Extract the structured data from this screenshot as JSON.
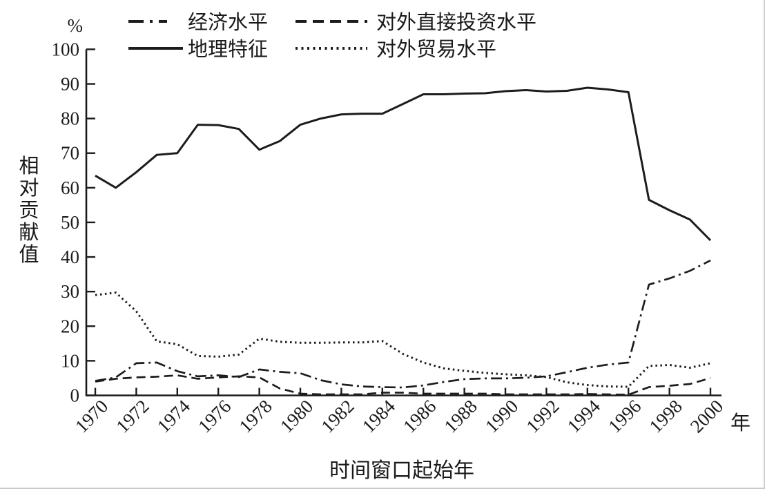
{
  "figure": {
    "percent_label": "%",
    "y_axis_title": "相对贡献值",
    "x_axis_title": "时间窗口起始年",
    "x_axis_unit_label": "年"
  },
  "colors": {
    "line": "#1c1c1c",
    "text": "#1a1a1a",
    "background": "#ffffff"
  },
  "legend": [
    {
      "label": "经济水平",
      "style": "dashdot"
    },
    {
      "label": "对外直接投资水平",
      "style": "dashed"
    },
    {
      "label": "地理特征",
      "style": "solid"
    },
    {
      "label": "对外贸易水平",
      "style": "dotted"
    }
  ],
  "chart_data": {
    "type": "line",
    "title": "",
    "xlabel": "时间窗口起始年",
    "ylabel": "相对贡献值",
    "y_unit": "%",
    "x_unit": "年",
    "ylim": [
      0,
      100
    ],
    "ytick_step": 10,
    "xtick_step": 2,
    "grid": false,
    "legend_position": "top",
    "x": [
      1970,
      1971,
      1972,
      1973,
      1974,
      1975,
      1976,
      1977,
      1978,
      1979,
      1980,
      1981,
      1982,
      1983,
      1984,
      1985,
      1986,
      1987,
      1988,
      1989,
      1990,
      1991,
      1992,
      1993,
      1994,
      1995,
      1996,
      1997,
      1998,
      1999,
      2000
    ],
    "series": [
      {
        "id": "geographic-features",
        "name": "地理特征",
        "style": "solid",
        "values": [
          63.5,
          60,
          64.5,
          69.5,
          70,
          78.2,
          78.1,
          77,
          71,
          73.5,
          78.2,
          80,
          81.2,
          81.4,
          81.4,
          84.2,
          87,
          87,
          87.2,
          87.3,
          87.9,
          88.2,
          87.8,
          88,
          88.9,
          88.4,
          87.6,
          56.5,
          53.5,
          50.8,
          44.8
        ]
      },
      {
        "id": "foreign-trade-level",
        "name": "对外贸易水平",
        "style": "dotted",
        "values": [
          29,
          29.7,
          24.3,
          15.6,
          14.8,
          11.4,
          11.2,
          11.8,
          16.4,
          15.5,
          15.2,
          15.2,
          15.3,
          15.3,
          15.7,
          12,
          9.5,
          7.8,
          7.1,
          6.5,
          6.1,
          5.8,
          5.3,
          3.8,
          3,
          2.6,
          2.5,
          8.5,
          8.8,
          8,
          9.3
        ]
      },
      {
        "id": "economic-level",
        "name": "经济水平",
        "style": "dashdot",
        "values": [
          4.2,
          5.2,
          9.3,
          9.5,
          7,
          5.5,
          5.8,
          5.3,
          7.5,
          6.8,
          6.4,
          4.4,
          3.2,
          2.6,
          2.4,
          2.3,
          2.9,
          3.9,
          4.7,
          4.9,
          4.9,
          5.1,
          5.5,
          6.7,
          8,
          8.9,
          9.5,
          32,
          33.8,
          36,
          39
        ]
      },
      {
        "id": "fdi-level",
        "name": "对外直接投资水平",
        "style": "dashed",
        "values": [
          4,
          4.8,
          5.2,
          5.4,
          5.8,
          4.8,
          5.2,
          5.5,
          5.2,
          2,
          0.5,
          0.3,
          0.3,
          0.3,
          0.8,
          0.8,
          0.5,
          0.5,
          0.5,
          0.5,
          0.3,
          0.3,
          0.3,
          0.3,
          0.4,
          0.3,
          0.2,
          2.4,
          2.8,
          3.3,
          5
        ]
      }
    ]
  }
}
